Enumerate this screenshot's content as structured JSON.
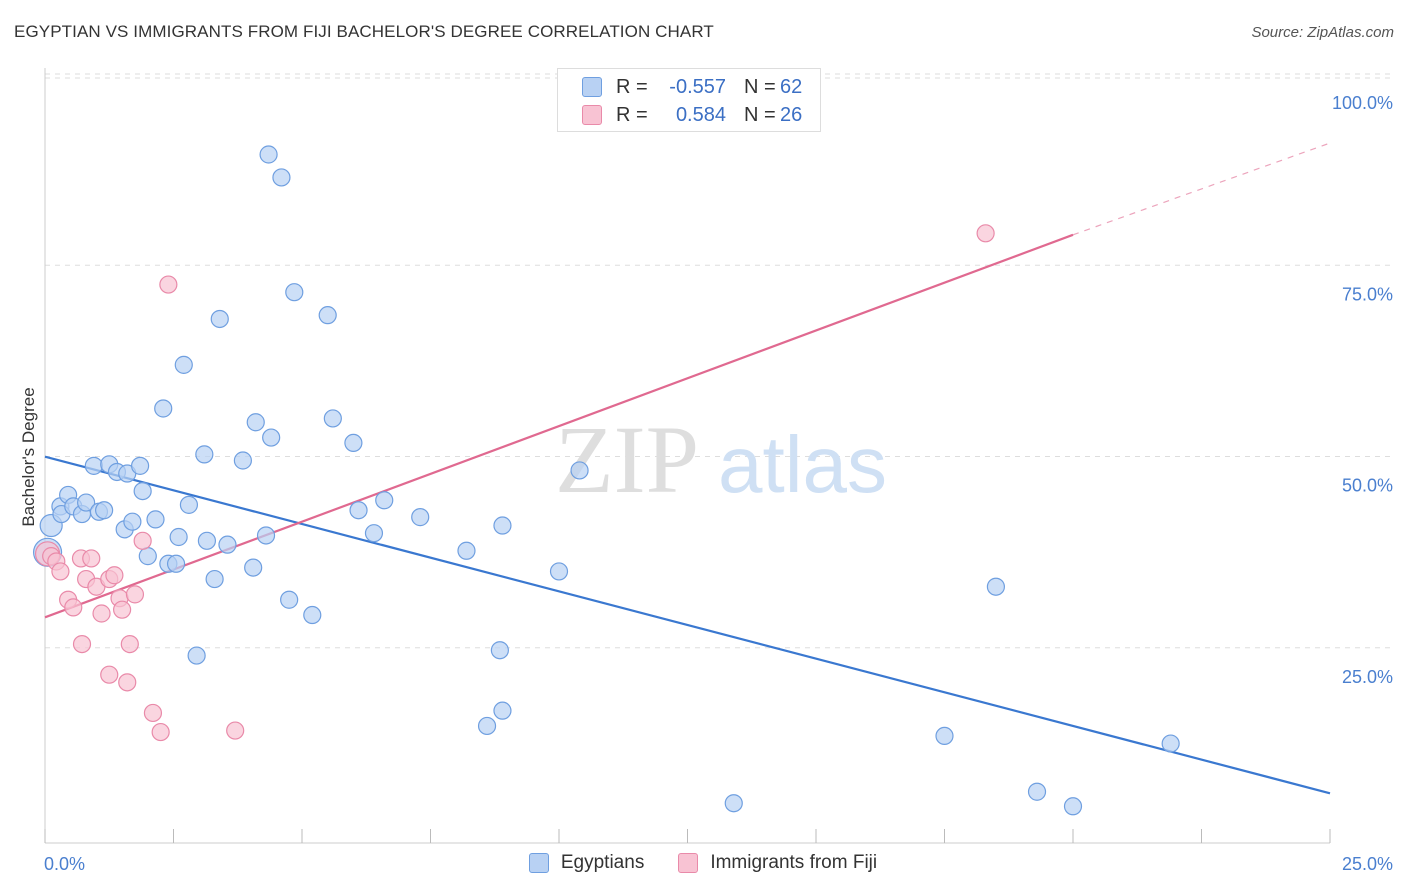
{
  "title": "EGYPTIAN VS IMMIGRANTS FROM FIJI BACHELOR'S DEGREE CORRELATION CHART",
  "source": "Source: ZipAtlas.com",
  "watermark": {
    "zip": "ZIP",
    "atlas": "atlas"
  },
  "colors": {
    "blue_fill": "#b8d1f3",
    "blue_stroke": "#6f9fe0",
    "blue_line": "#3a78d0",
    "pink_fill": "#f8c3d3",
    "pink_stroke": "#e98aa9",
    "pink_line": "#e06990",
    "axis_text": "#4a7fcf",
    "grid": "#dddddd"
  },
  "legend": {
    "rows": [
      {
        "r_label": "R =",
        "r_value": "-0.557",
        "n_label": "N =",
        "n_value": "62"
      },
      {
        "r_label": "R =",
        "r_value": "0.584",
        "n_label": "N =",
        "n_value": "26"
      }
    ]
  },
  "bottom_legend": [
    "Egyptians",
    "Immigrants from Fiji"
  ],
  "chart_data": {
    "type": "scatter",
    "title": "EGYPTIAN VS IMMIGRANTS FROM FIJI BACHELOR'S DEGREE CORRELATION CHART",
    "xlabel": "",
    "ylabel": "Bachelor's Degree",
    "xlim": [
      0,
      25
    ],
    "ylim": [
      0,
      100
    ],
    "x_tick_labels": [
      "0.0%",
      "25.0%"
    ],
    "y_tick_labels": [
      "100.0%",
      "75.0%",
      "50.0%",
      "25.0%"
    ],
    "y_tick_values": [
      100,
      75,
      50,
      25
    ],
    "series": [
      {
        "name": "Egyptians",
        "color": "blue",
        "r": -0.557,
        "n": 62,
        "trend": {
          "x0": 0,
          "y0": 50.5,
          "x1": 25,
          "y1": 6.5
        },
        "points": [
          [
            0.05,
            38.0
          ],
          [
            0.12,
            41.5
          ],
          [
            0.3,
            44.0
          ],
          [
            0.32,
            43.0
          ],
          [
            0.45,
            45.5
          ],
          [
            0.55,
            44.0
          ],
          [
            0.72,
            43.0
          ],
          [
            0.8,
            44.5
          ],
          [
            0.95,
            49.3
          ],
          [
            1.05,
            43.3
          ],
          [
            1.15,
            43.5
          ],
          [
            1.25,
            49.5
          ],
          [
            1.4,
            48.5
          ],
          [
            1.55,
            41.0
          ],
          [
            1.6,
            48.3
          ],
          [
            1.7,
            42.0
          ],
          [
            1.85,
            49.3
          ],
          [
            1.9,
            46.0
          ],
          [
            2.0,
            37.5
          ],
          [
            2.15,
            42.3
          ],
          [
            2.3,
            56.8
          ],
          [
            2.4,
            36.5
          ],
          [
            2.55,
            36.5
          ],
          [
            2.6,
            40.0
          ],
          [
            2.7,
            62.5
          ],
          [
            2.8,
            44.2
          ],
          [
            2.95,
            24.5
          ],
          [
            3.1,
            50.8
          ],
          [
            3.15,
            39.5
          ],
          [
            3.3,
            34.5
          ],
          [
            3.4,
            68.5
          ],
          [
            3.55,
            39.0
          ],
          [
            3.85,
            50.0
          ],
          [
            4.05,
            36.0
          ],
          [
            4.1,
            55.0
          ],
          [
            4.3,
            40.2
          ],
          [
            4.35,
            90.0
          ],
          [
            4.4,
            53.0
          ],
          [
            4.6,
            87.0
          ],
          [
            4.75,
            31.8
          ],
          [
            4.85,
            72.0
          ],
          [
            5.2,
            29.8
          ],
          [
            5.5,
            69.0
          ],
          [
            5.6,
            55.5
          ],
          [
            6.0,
            52.3
          ],
          [
            6.1,
            43.5
          ],
          [
            6.4,
            40.5
          ],
          [
            6.6,
            44.8
          ],
          [
            7.3,
            42.6
          ],
          [
            8.2,
            38.2
          ],
          [
            8.9,
            41.5
          ],
          [
            8.85,
            25.2
          ],
          [
            8.9,
            17.3
          ],
          [
            8.6,
            15.3
          ],
          [
            10.0,
            35.5
          ],
          [
            10.4,
            48.7
          ],
          [
            13.4,
            5.2
          ],
          [
            17.5,
            14.0
          ],
          [
            18.5,
            33.5
          ],
          [
            19.3,
            6.7
          ],
          [
            20.0,
            4.8
          ],
          [
            21.9,
            13.0
          ]
        ]
      },
      {
        "name": "Immigrants from Fiji",
        "color": "pink",
        "r": 0.584,
        "n": 26,
        "trend": {
          "x0": 0,
          "y0": 29.5,
          "x1": 20,
          "y1": 79.5,
          "dash_to_x": 25,
          "dash_to_y": 91.5
        },
        "points": [
          [
            0.05,
            37.8
          ],
          [
            0.12,
            37.5
          ],
          [
            0.22,
            36.8
          ],
          [
            0.3,
            35.5
          ],
          [
            0.45,
            31.8
          ],
          [
            0.55,
            30.8
          ],
          [
            0.7,
            37.2
          ],
          [
            0.72,
            26.0
          ],
          [
            0.8,
            34.5
          ],
          [
            0.9,
            37.2
          ],
          [
            1.0,
            33.5
          ],
          [
            1.1,
            30.0
          ],
          [
            1.25,
            34.5
          ],
          [
            1.25,
            22.0
          ],
          [
            1.35,
            35.0
          ],
          [
            1.45,
            32.0
          ],
          [
            1.5,
            30.5
          ],
          [
            1.6,
            21.0
          ],
          [
            1.65,
            26.0
          ],
          [
            1.75,
            32.5
          ],
          [
            1.9,
            39.5
          ],
          [
            2.1,
            17.0
          ],
          [
            2.25,
            14.5
          ],
          [
            2.4,
            73.0
          ],
          [
            3.7,
            14.7
          ],
          [
            18.3,
            79.7
          ]
        ]
      }
    ]
  }
}
